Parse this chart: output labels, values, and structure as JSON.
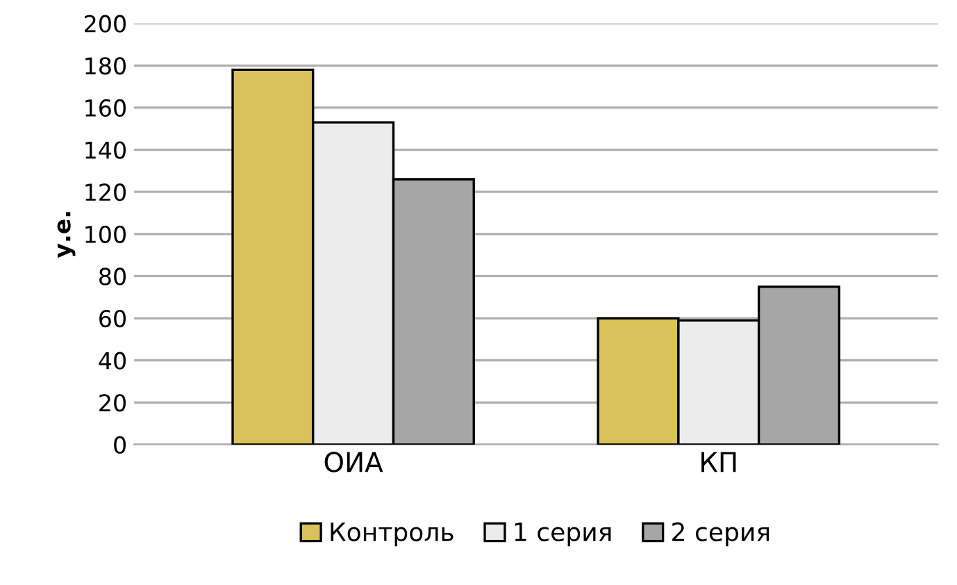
{
  "chart_data": {
    "type": "bar",
    "ylabel": "у.е.",
    "categories": [
      "ОИА",
      "КП"
    ],
    "series": [
      {
        "name": "Контроль",
        "color": "#d9c25a",
        "values": [
          178,
          60
        ]
      },
      {
        "name": "1 серия",
        "color": "#ececec",
        "values": [
          153,
          59
        ]
      },
      {
        "name": "2 серия",
        "color": "#a6a6a6",
        "values": [
          126,
          75
        ]
      }
    ],
    "ylim": [
      0,
      200
    ],
    "yticks": [
      0,
      20,
      40,
      60,
      80,
      100,
      120,
      140,
      160,
      180,
      200
    ],
    "grid": "y",
    "legend": "bottom"
  }
}
